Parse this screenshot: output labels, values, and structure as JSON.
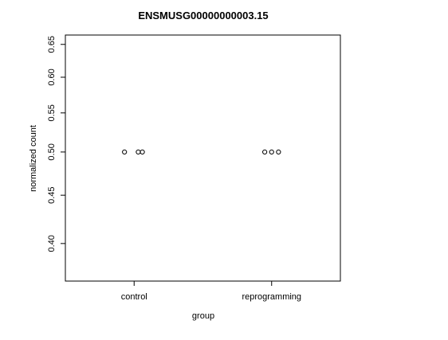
{
  "chart_data": {
    "type": "scatter",
    "title": "ENSMUSG00000000003.15",
    "xlabel": "group",
    "ylabel": "normalized count",
    "categories": [
      "control",
      "reprogramming"
    ],
    "ylim": [
      0.365,
      0.665
    ],
    "log_y": true,
    "y_ticks": [
      {
        "value": 0.4,
        "label": "0.40"
      },
      {
        "value": 0.45,
        "label": "0.45"
      },
      {
        "value": 0.5,
        "label": "0.50"
      },
      {
        "value": 0.55,
        "label": "0.55"
      },
      {
        "value": 0.6,
        "label": "0.60"
      },
      {
        "value": 0.65,
        "label": "0.65"
      }
    ],
    "series": [
      {
        "category": "control",
        "points": [
          {
            "x": 0.93,
            "y": 0.5
          },
          {
            "x": 1.03,
            "y": 0.5
          },
          {
            "x": 1.06,
            "y": 0.5
          }
        ]
      },
      {
        "category": "reprogramming",
        "points": [
          {
            "x": 1.95,
            "y": 0.5
          },
          {
            "x": 2.0,
            "y": 0.5
          },
          {
            "x": 2.05,
            "y": 0.5
          }
        ]
      }
    ],
    "grid": false,
    "marker": "open-circle"
  }
}
